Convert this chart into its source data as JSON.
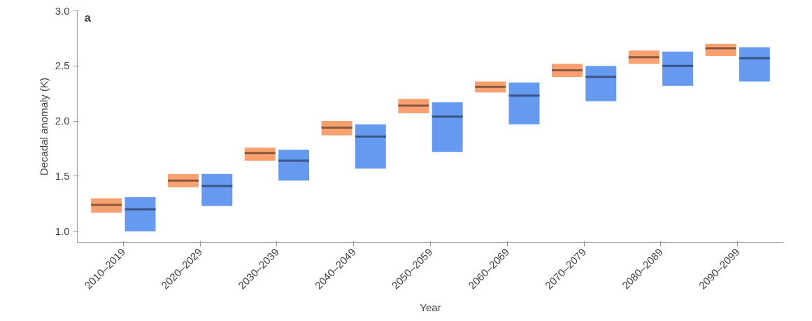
{
  "chart_data": {
    "type": "box",
    "xlabel": "Year",
    "ylabel": "Decadal anomaly (K)",
    "annotations": [
      "a"
    ],
    "categories": [
      "2010–2019",
      "2020–2029",
      "2030–2039",
      "2040–2049",
      "2050–2059",
      "2060–2069",
      "2070–2079",
      "2080–2089",
      "2090–2099"
    ],
    "ylim": [
      0.9,
      3.0
    ],
    "yticks": [
      {
        "value": 1.0,
        "label": "1.0"
      },
      {
        "value": 1.5,
        "label": "1.5"
      },
      {
        "value": 2.0,
        "label": "2.0"
      },
      {
        "value": 2.5,
        "label": "2.5"
      },
      {
        "value": 3.0,
        "label": "3.0"
      }
    ],
    "grid": false,
    "series": [
      {
        "color": "#f9a070",
        "boxes": [
          {
            "low": 1.17,
            "q1": 1.17,
            "median": 1.24,
            "q3": 1.3,
            "high": 1.3
          },
          {
            "low": 1.4,
            "q1": 1.4,
            "median": 1.46,
            "q3": 1.52,
            "high": 1.52
          },
          {
            "low": 1.64,
            "q1": 1.64,
            "median": 1.71,
            "q3": 1.76,
            "high": 1.76
          },
          {
            "low": 1.87,
            "q1": 1.87,
            "median": 1.94,
            "q3": 2.0,
            "high": 2.0
          },
          {
            "low": 2.07,
            "q1": 2.07,
            "median": 2.14,
            "q3": 2.2,
            "high": 2.2
          },
          {
            "low": 2.26,
            "q1": 2.26,
            "median": 2.31,
            "q3": 2.36,
            "high": 2.36
          },
          {
            "low": 2.4,
            "q1": 2.4,
            "median": 2.46,
            "q3": 2.52,
            "high": 2.52
          },
          {
            "low": 2.52,
            "q1": 2.52,
            "median": 2.58,
            "q3": 2.64,
            "high": 2.64
          },
          {
            "low": 2.59,
            "q1": 2.59,
            "median": 2.66,
            "q3": 2.7,
            "high": 2.7
          }
        ]
      },
      {
        "color": "#6699f0",
        "boxes": [
          {
            "low": 1.0,
            "q1": 1.0,
            "median": 1.2,
            "q3": 1.31,
            "high": 1.31
          },
          {
            "low": 1.23,
            "q1": 1.23,
            "median": 1.41,
            "q3": 1.52,
            "high": 1.52
          },
          {
            "low": 1.46,
            "q1": 1.46,
            "median": 1.64,
            "q3": 1.74,
            "high": 1.74
          },
          {
            "low": 1.57,
            "q1": 1.57,
            "median": 1.86,
            "q3": 1.97,
            "high": 1.97
          },
          {
            "low": 1.72,
            "q1": 1.72,
            "median": 2.04,
            "q3": 2.17,
            "high": 2.17
          },
          {
            "low": 1.97,
            "q1": 1.97,
            "median": 2.23,
            "q3": 2.35,
            "high": 2.35
          },
          {
            "low": 2.18,
            "q1": 2.18,
            "median": 2.4,
            "q3": 2.5,
            "high": 2.5
          },
          {
            "low": 2.32,
            "q1": 2.32,
            "median": 2.5,
            "q3": 2.63,
            "high": 2.63
          },
          {
            "low": 2.36,
            "q1": 2.36,
            "median": 2.57,
            "q3": 2.67,
            "high": 2.67
          }
        ]
      }
    ]
  }
}
